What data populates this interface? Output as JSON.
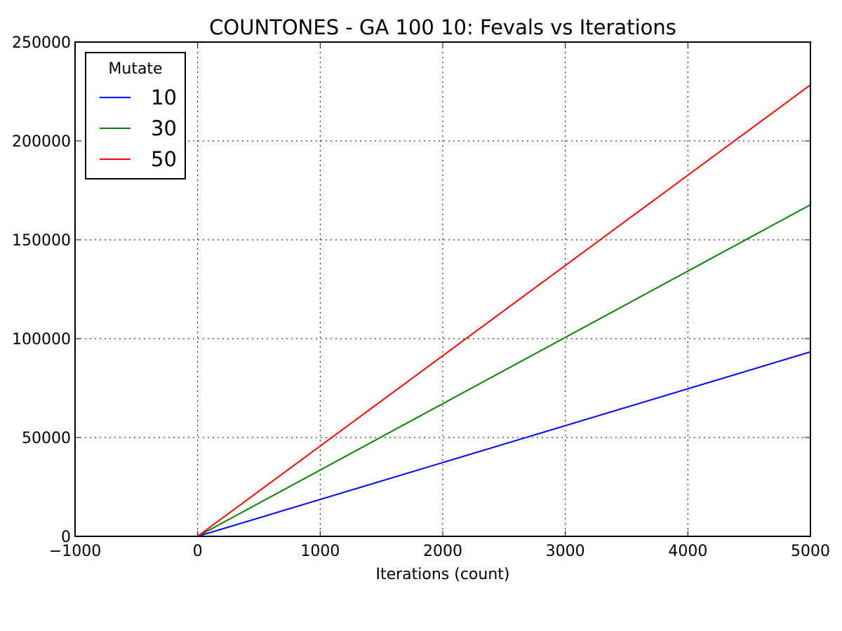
{
  "chart_data": {
    "type": "line",
    "title": "COUNTONES - GA 100 10: Fevals vs Iterations",
    "xlabel": "Iterations (count)",
    "ylabel": "",
    "xlim": [
      -1000,
      5000
    ],
    "ylim": [
      0,
      250000
    ],
    "xticks": [
      -1000,
      0,
      1000,
      2000,
      3000,
      4000,
      5000
    ],
    "xtick_labels": [
      "−1000",
      "0",
      "1000",
      "2000",
      "3000",
      "4000",
      "5000"
    ],
    "yticks": [
      0,
      50000,
      100000,
      150000,
      200000,
      250000
    ],
    "ytick_labels": [
      "0",
      "50000",
      "100000",
      "150000",
      "200000",
      "250000"
    ],
    "grid": true,
    "legend": {
      "title": "Mutate",
      "placement": "top-left"
    },
    "series": [
      {
        "name": "10",
        "color": "#0000ff",
        "x": [
          0,
          5000
        ],
        "y": [
          0,
          93300
        ]
      },
      {
        "name": "30",
        "color": "#008000",
        "x": [
          0,
          5000
        ],
        "y": [
          0,
          167700
        ]
      },
      {
        "name": "50",
        "color": "#ff0000",
        "x": [
          0,
          5000
        ],
        "y": [
          0,
          228300
        ]
      }
    ]
  }
}
